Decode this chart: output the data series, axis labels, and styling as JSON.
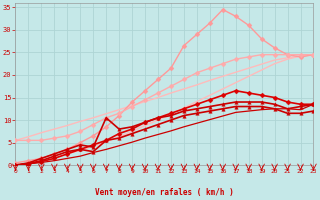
{
  "background_color": "#c5e8e8",
  "grid_color": "#aed4d4",
  "xlabel": "Vent moyen/en rafales ( km/h )",
  "xlabel_color": "#cc0000",
  "tick_color": "#cc0000",
  "xlim": [
    0,
    23
  ],
  "ylim": [
    0,
    36
  ],
  "yticks": [
    0,
    5,
    10,
    15,
    20,
    25,
    30,
    35
  ],
  "xticks": [
    0,
    1,
    2,
    3,
    4,
    5,
    6,
    7,
    8,
    9,
    10,
    11,
    12,
    13,
    14,
    15,
    16,
    17,
    18,
    19,
    20,
    21,
    22,
    23
  ],
  "lines": [
    {
      "x": [
        0,
        1,
        2,
        3,
        4,
        5,
        6,
        7,
        8,
        9,
        10,
        11,
        12,
        13,
        14,
        15,
        16,
        17,
        18,
        19,
        20,
        21,
        22,
        23
      ],
      "y": [
        0,
        0.5,
        1.1,
        1.7,
        2.5,
        3.3,
        4.2,
        5.2,
        6.3,
        7.5,
        8.8,
        10.0,
        11.3,
        12.7,
        14.1,
        15.5,
        16.9,
        18.3,
        19.7,
        21.1,
        22.5,
        23.5,
        24.2,
        24.5
      ],
      "color": "#ffbbbb",
      "lw": 1.0,
      "marker": null
    },
    {
      "x": [
        0,
        1,
        2,
        3,
        4,
        5,
        6,
        7,
        8,
        9,
        10,
        11,
        12,
        13,
        14,
        15,
        16,
        17,
        18,
        19,
        20,
        21,
        22,
        23
      ],
      "y": [
        5.5,
        6.3,
        7.2,
        8.0,
        8.8,
        9.7,
        10.5,
        11.4,
        12.3,
        13.2,
        14.1,
        15.0,
        16.0,
        16.9,
        17.8,
        18.8,
        19.7,
        20.6,
        21.5,
        22.4,
        23.3,
        23.8,
        24.2,
        24.5
      ],
      "color": "#ffbbbb",
      "lw": 1.0,
      "marker": null
    },
    {
      "x": [
        0,
        1,
        2,
        3,
        4,
        5,
        6,
        7,
        8,
        9,
        10,
        11,
        12,
        13,
        14,
        15,
        16,
        17,
        18,
        19,
        20,
        21,
        22,
        23
      ],
      "y": [
        0.5,
        1.0,
        1.5,
        2.5,
        3.5,
        5.0,
        6.5,
        8.5,
        11.0,
        14.0,
        16.5,
        19.0,
        21.5,
        26.5,
        29.0,
        31.5,
        34.5,
        33.0,
        31.0,
        28.0,
        26.0,
        24.5,
        24.0,
        24.5
      ],
      "color": "#ff9999",
      "lw": 1.0,
      "marker": "D",
      "markersize": 2.5
    },
    {
      "x": [
        0,
        1,
        2,
        3,
        4,
        5,
        6,
        7,
        8,
        9,
        10,
        11,
        12,
        13,
        14,
        15,
        16,
        17,
        18,
        19,
        20,
        21,
        22,
        23
      ],
      "y": [
        5.5,
        5.5,
        5.5,
        6.0,
        6.5,
        7.5,
        9.0,
        10.5,
        11.5,
        13.0,
        14.5,
        16.0,
        17.5,
        19.0,
        20.5,
        21.5,
        22.5,
        23.5,
        24.0,
        24.5,
        24.5,
        24.5,
        24.5,
        24.5
      ],
      "color": "#ffaaaa",
      "lw": 1.0,
      "marker": "D",
      "markersize": 2.5
    },
    {
      "x": [
        0,
        1,
        2,
        3,
        4,
        5,
        6,
        7,
        8,
        9,
        10,
        11,
        12,
        13,
        14,
        15,
        16,
        17,
        18,
        19,
        20,
        21,
        22,
        23
      ],
      "y": [
        0,
        0.3,
        0.8,
        1.5,
        2.5,
        3.5,
        4.5,
        5.5,
        7.0,
        8.0,
        9.5,
        10.5,
        11.5,
        12.5,
        13.5,
        14.5,
        15.5,
        16.5,
        16.0,
        15.5,
        15.0,
        14.0,
        13.5,
        13.5
      ],
      "color": "#dd0000",
      "lw": 1.2,
      "marker": "D",
      "markersize": 2.5
    },
    {
      "x": [
        0,
        1,
        2,
        3,
        4,
        5,
        6,
        7,
        8,
        9,
        10,
        11,
        12,
        13,
        14,
        15,
        16,
        17,
        18,
        19,
        20,
        21,
        22,
        23
      ],
      "y": [
        0,
        0.5,
        1.5,
        2.5,
        3.5,
        4.5,
        4.0,
        10.5,
        8.0,
        8.5,
        9.5,
        10.5,
        11.0,
        12.0,
        12.5,
        13.0,
        13.5,
        14.0,
        14.0,
        14.0,
        13.5,
        12.5,
        13.0,
        13.5
      ],
      "color": "#cc0000",
      "lw": 1.2,
      "marker": "^",
      "markersize": 2.5
    },
    {
      "x": [
        0,
        1,
        2,
        3,
        4,
        5,
        6,
        7,
        8,
        9,
        10,
        11,
        12,
        13,
        14,
        15,
        16,
        17,
        18,
        19,
        20,
        21,
        22,
        23
      ],
      "y": [
        0,
        0.3,
        1.0,
        2.0,
        3.0,
        3.5,
        3.0,
        5.5,
        6.0,
        7.0,
        8.0,
        9.0,
        10.0,
        11.0,
        11.5,
        12.0,
        12.5,
        13.0,
        13.0,
        13.0,
        12.5,
        11.5,
        11.5,
        12.0
      ],
      "color": "#cc0000",
      "lw": 1.2,
      "marker": "^",
      "markersize": 2.5
    },
    {
      "x": [
        0,
        1,
        2,
        3,
        4,
        5,
        6,
        7,
        8,
        9,
        10,
        11,
        12,
        13,
        14,
        15,
        16,
        17,
        18,
        19,
        20,
        21,
        22,
        23
      ],
      "y": [
        0,
        0.3,
        0.6,
        1.0,
        1.5,
        2.0,
        2.8,
        3.5,
        4.3,
        5.1,
        6.0,
        6.8,
        7.6,
        8.5,
        9.3,
        10.1,
        10.9,
        11.7,
        12.0,
        12.3,
        12.5,
        12.5,
        12.3,
        13.5
      ],
      "color": "#cc0000",
      "lw": 0.9,
      "marker": null
    }
  ]
}
